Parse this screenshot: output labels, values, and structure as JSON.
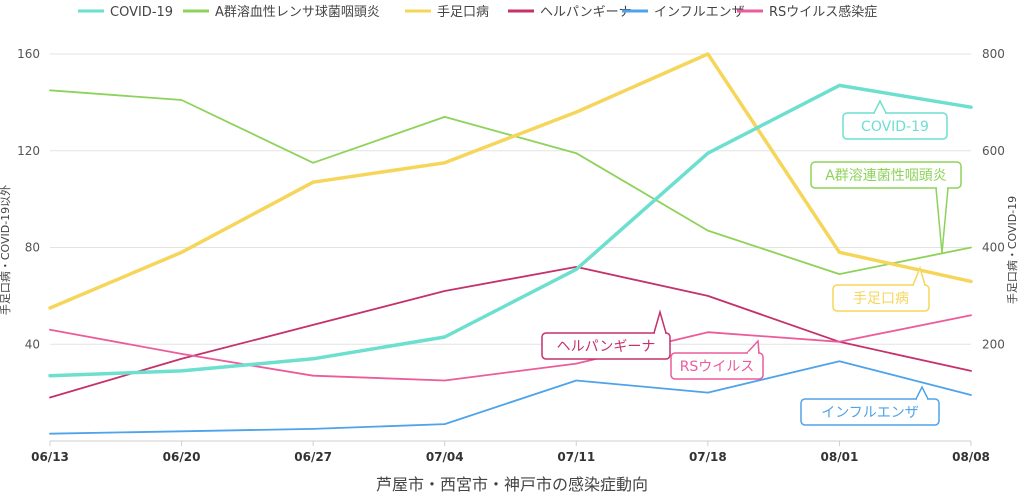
{
  "chart_data": {
    "type": "line",
    "title": "芦屋市・西宮市・神戸市の感染症動向",
    "x": [
      "06/13",
      "06/20",
      "06/27",
      "07/04",
      "07/11",
      "07/18",
      "08/01",
      "08/08"
    ],
    "ylabel_left": "手足口病・COVID-19以外",
    "ylabel_right": "手足口病・COVID-19",
    "ylim_left": [
      0,
      160
    ],
    "ylim_right": [
      0,
      800
    ],
    "yticks_left": [
      "40",
      "80",
      "120",
      "160"
    ],
    "yticks_right": [
      "200",
      "400",
      "600",
      "800"
    ],
    "grid": true,
    "legend_position": "top",
    "series": [
      {
        "name": "COVID-19",
        "axis": "right",
        "color": "#6ddfcf",
        "width": 3.5,
        "values": [
          135,
          145,
          170,
          215,
          355,
          595,
          735,
          690
        ]
      },
      {
        "name": "A群溶血性レンサ球菌咽頭炎",
        "axis": "left",
        "color": "#8dd35a",
        "width": 1.8,
        "values": [
          145,
          141,
          115,
          134,
          119,
          87,
          69,
          80
        ]
      },
      {
        "name": "手足口病",
        "axis": "right",
        "color": "#f5d65a",
        "width": 3.5,
        "values": [
          275,
          390,
          535,
          575,
          680,
          800,
          390,
          330
        ]
      },
      {
        "name": "ヘルパンギーナ",
        "axis": "left",
        "color": "#c4316b",
        "width": 1.8,
        "values": [
          18,
          34,
          48,
          62,
          72,
          60,
          41,
          29
        ]
      },
      {
        "name": "インフルエンザ",
        "axis": "left",
        "color": "#4ea3ea",
        "width": 1.8,
        "values": [
          3,
          4,
          5,
          7,
          25,
          20,
          33,
          19
        ]
      },
      {
        "name": "RSウイルス感染症",
        "axis": "left",
        "color": "#ec5c9c",
        "width": 1.8,
        "values": [
          46,
          36,
          27,
          25,
          32,
          45,
          41,
          52
        ]
      }
    ],
    "annotations": [
      {
        "text": "COVID-19",
        "series": 0
      },
      {
        "text": "A群溶連菌性咽頭炎",
        "series": 1
      },
      {
        "text": "手足口病",
        "series": 2
      },
      {
        "text": "ヘルパンギーナ",
        "series": 3
      },
      {
        "text": "RSウイルス",
        "series": 5
      },
      {
        "text": "インフルエンザ",
        "series": 4
      }
    ]
  }
}
